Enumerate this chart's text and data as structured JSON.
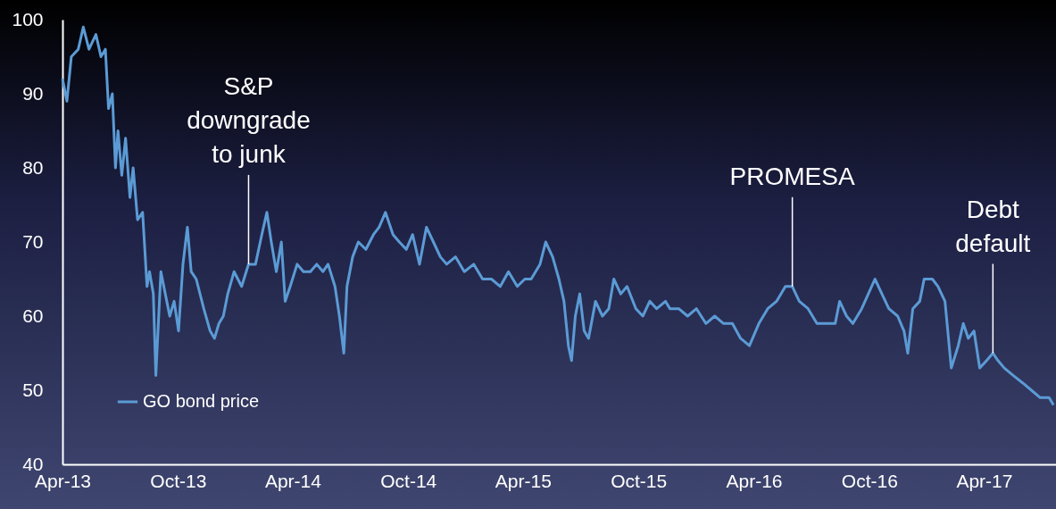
{
  "chart_data": {
    "type": "line",
    "x": [
      "2013-04-01",
      "2013-04-08",
      "2013-04-15",
      "2013-04-26",
      "2013-05-04",
      "2013-05-13",
      "2013-05-24",
      "2013-06-01",
      "2013-06-08",
      "2013-06-13",
      "2013-06-19",
      "2013-06-24",
      "2013-06-28",
      "2013-07-04",
      "2013-07-10",
      "2013-07-17",
      "2013-07-22",
      "2013-07-29",
      "2013-08-06",
      "2013-08-13",
      "2013-08-17",
      "2013-08-23",
      "2013-08-27",
      "2013-09-04",
      "2013-09-11",
      "2013-09-18",
      "2013-09-25",
      "2013-10-02",
      "2013-10-09",
      "2013-10-16",
      "2013-10-22",
      "2013-10-30",
      "2013-11-11",
      "2013-11-21",
      "2013-11-28",
      "2013-12-05",
      "2013-12-12",
      "2013-12-19",
      "2013-12-29",
      "2014-01-10",
      "2014-01-21",
      "2014-02-01",
      "2014-02-11",
      "2014-02-19",
      "2014-02-26",
      "2014-03-06",
      "2014-03-14",
      "2014-03-20",
      "2014-03-28",
      "2014-04-08",
      "2014-04-18",
      "2014-04-29",
      "2014-05-09",
      "2014-05-19",
      "2014-05-27",
      "2014-06-07",
      "2014-06-14",
      "2014-06-21",
      "2014-06-26",
      "2014-07-05",
      "2014-07-14",
      "2014-07-26",
      "2014-08-07",
      "2014-08-16",
      "2014-08-26",
      "2014-09-07",
      "2014-09-17",
      "2014-09-28",
      "2014-10-08",
      "2014-10-19",
      "2014-10-30",
      "2014-11-10",
      "2014-11-21",
      "2014-12-01",
      "2014-12-15",
      "2014-12-29",
      "2015-01-13",
      "2015-01-27",
      "2015-02-10",
      "2015-02-24",
      "2015-03-09",
      "2015-03-23",
      "2015-04-04",
      "2015-04-14",
      "2015-04-28",
      "2015-05-07",
      "2015-05-18",
      "2015-05-28",
      "2015-06-05",
      "2015-06-12",
      "2015-06-17",
      "2015-06-23",
      "2015-06-30",
      "2015-07-07",
      "2015-07-14",
      "2015-07-25",
      "2015-08-05",
      "2015-08-15",
      "2015-08-23",
      "2015-09-03",
      "2015-09-13",
      "2015-09-27",
      "2015-10-08",
      "2015-10-19",
      "2015-10-30",
      "2015-11-13",
      "2015-11-20",
      "2015-12-04",
      "2015-12-18",
      "2016-01-01",
      "2016-01-16",
      "2016-01-30",
      "2016-02-13",
      "2016-02-27",
      "2016-03-11",
      "2016-03-25",
      "2016-04-09",
      "2016-04-23",
      "2016-05-07",
      "2016-05-21",
      "2016-06-01",
      "2016-06-12",
      "2016-06-26",
      "2016-07-10",
      "2016-07-24",
      "2016-08-08",
      "2016-08-15",
      "2016-08-26",
      "2016-09-05",
      "2016-09-19",
      "2016-10-10",
      "2016-10-21",
      "2016-11-01",
      "2016-11-15",
      "2016-11-25",
      "2016-12-01",
      "2016-12-09",
      "2016-12-20",
      "2016-12-27",
      "2017-01-09",
      "2017-01-18",
      "2017-01-29",
      "2017-02-08",
      "2017-02-19",
      "2017-02-27",
      "2017-03-07",
      "2017-03-16",
      "2017-03-25",
      "2017-04-05",
      "2017-04-15",
      "2017-04-23",
      "2017-05-03",
      "2017-05-17",
      "2017-06-01",
      "2017-06-15",
      "2017-06-29",
      "2017-07-13",
      "2017-07-20"
    ],
    "series": [
      {
        "name": "GO bond price",
        "color": "#5b9bd5",
        "values": [
          92,
          89,
          95,
          96,
          99,
          96,
          98,
          95,
          96,
          88,
          90,
          80,
          85,
          79,
          84,
          76,
          80,
          73,
          74,
          64,
          66,
          63,
          52,
          66,
          63,
          60,
          62,
          58,
          67,
          72,
          66,
          65,
          61,
          58,
          57,
          59,
          60,
          63,
          66,
          64,
          67,
          67,
          71,
          74,
          70,
          66,
          70,
          62,
          64,
          67,
          66,
          66,
          67,
          66,
          67,
          64,
          60,
          55,
          64,
          68,
          70,
          69,
          71,
          72,
          74,
          71,
          70,
          69,
          71,
          67,
          72,
          70,
          68,
          67,
          68,
          66,
          67,
          65,
          65,
          64,
          66,
          64,
          65,
          65,
          67,
          70,
          68,
          65,
          62,
          56,
          54,
          60,
          63,
          58,
          57,
          62,
          60,
          61,
          65,
          63,
          64,
          61,
          60,
          62,
          61,
          62,
          61,
          61,
          60,
          61,
          59,
          60,
          59,
          59,
          57,
          56,
          59,
          61,
          62,
          64,
          64,
          62,
          61,
          59,
          59,
          59,
          62,
          60,
          59,
          61,
          65,
          63,
          61,
          60,
          58,
          55,
          61,
          62,
          65,
          65,
          64,
          62,
          53,
          56,
          59,
          57,
          58,
          53,
          54,
          55,
          54,
          53,
          52,
          51,
          50,
          49,
          49,
          48
        ]
      }
    ],
    "xlim": [
      "2013-04-01",
      "2017-07-24"
    ],
    "xticks": [
      {
        "value": "2013-04-01",
        "label": "Apr-13"
      },
      {
        "value": "2013-10-01",
        "label": "Oct-13"
      },
      {
        "value": "2014-04-01",
        "label": "Apr-14"
      },
      {
        "value": "2014-10-01",
        "label": "Oct-14"
      },
      {
        "value": "2015-04-01",
        "label": "Apr-15"
      },
      {
        "value": "2015-10-01",
        "label": "Oct-15"
      },
      {
        "value": "2016-04-01",
        "label": "Apr-16"
      },
      {
        "value": "2016-10-01",
        "label": "Oct-16"
      },
      {
        "value": "2017-04-01",
        "label": "Apr-17"
      }
    ],
    "ylim": [
      40,
      100
    ],
    "yticks": [
      40,
      50,
      60,
      70,
      80,
      90,
      100
    ],
    "grid": false,
    "legend": "bottom left",
    "annotations": [
      {
        "text": "S&P\ndowngrade\nto junk",
        "x": "2014-01-21",
        "y": 67
      },
      {
        "text": "PROMESA",
        "x": "2016-06-01",
        "y": 64
      },
      {
        "text": "Debt\ndefault",
        "x": "2017-04-15",
        "y": 55
      }
    ]
  }
}
